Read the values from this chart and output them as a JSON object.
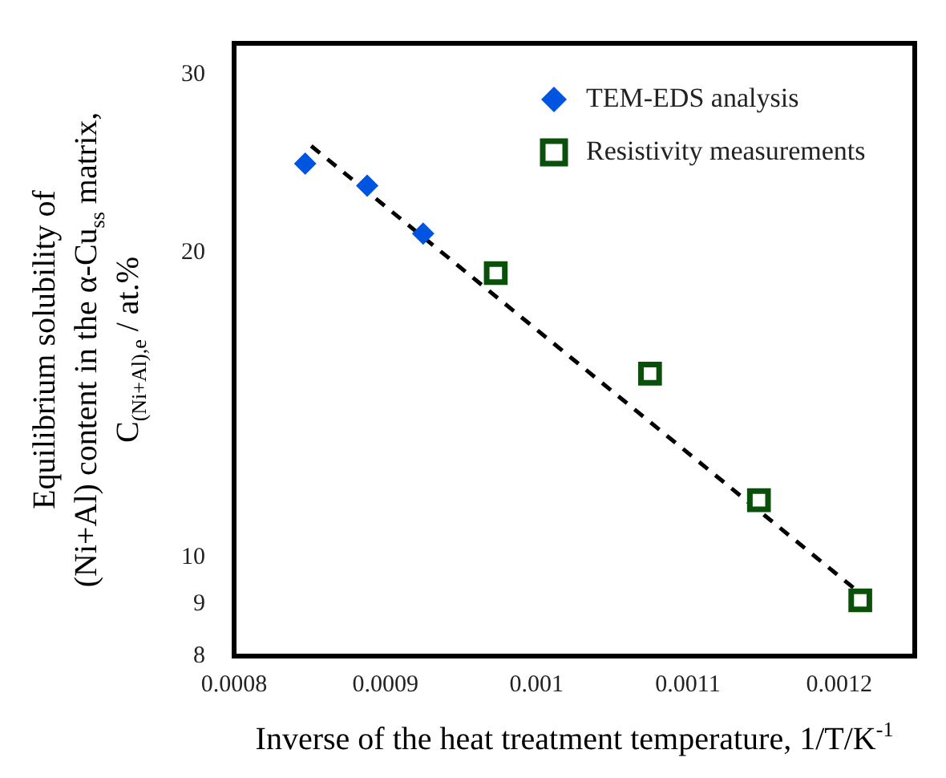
{
  "chart_data": {
    "type": "scatter",
    "xlabel": "Inverse of the heat treatment temperature, 1/T/K$^{-1}$",
    "ylabel": "Equilibrium solubility of\n(Ni+Al) content in the α-Cu$_{ss}$ matrix,\nC$_{(Ni+Al),e}$ / at.%",
    "series": [
      {
        "name": "TEM-EDS analysis",
        "color": "#0055e0",
        "marker": "diamond",
        "x": [
          0.000847,
          0.000888,
          0.000925
        ],
        "values": [
          24.5,
          23.3,
          20.9
        ]
      },
      {
        "name": "Resistivity measurements",
        "color": "#0a4f0a",
        "marker": "square",
        "x": [
          0.000973,
          0.001075,
          0.001147,
          0.001214
        ],
        "values": [
          19.1,
          15.2,
          11.4,
          9.08
        ]
      },
      {
        "type": "line",
        "color": "#000000",
        "line_style": "dashed",
        "marker": "none",
        "x": [
          0.000851,
          0.00121
        ],
        "values": [
          25.5,
          9.33
        ]
      }
    ],
    "xlim": [
      0.0008,
      0.00125
    ],
    "xticks": [
      0.0008,
      0.0009,
      0.001,
      0.0011,
      0.0012
    ],
    "ylim": [
      8,
      32.2
    ],
    "yticks": [
      8,
      9,
      10,
      20,
      30
    ],
    "log": "y",
    "grid": false,
    "legend": "top right"
  }
}
